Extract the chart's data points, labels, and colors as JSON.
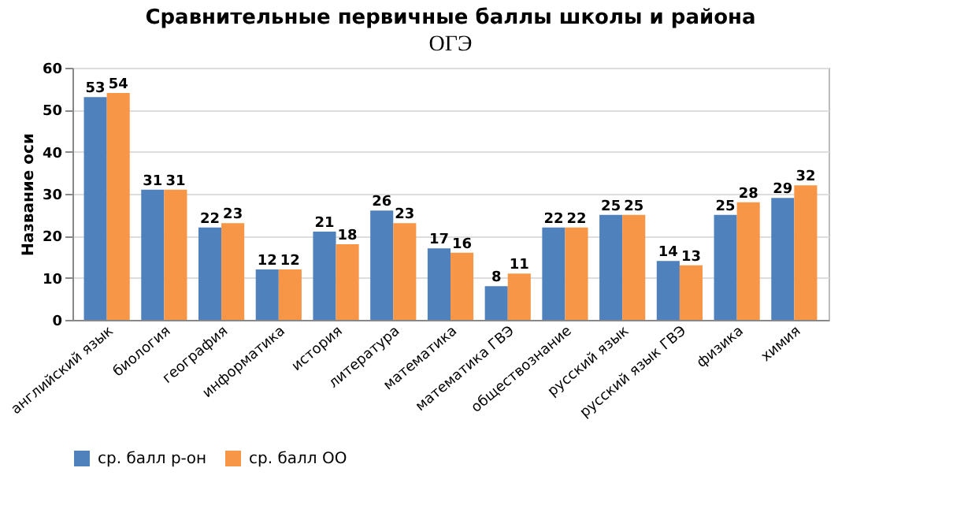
{
  "chart_data": {
    "type": "bar",
    "title": "Сравнительные первичные баллы школы и района",
    "subtitle": "ОГЭ",
    "ylabel": "Название оси",
    "categories": [
      "английский язык",
      "биология",
      "география",
      "информатика",
      "история",
      "литература",
      "математика",
      "математика ГВЭ",
      "обществознание",
      "русский язык",
      "русский язык ГВЭ",
      "физика",
      "химия"
    ],
    "series": [
      {
        "name": "ср. балл р-он",
        "color": "#4f81bd",
        "values": [
          53,
          31,
          22,
          12,
          21,
          26,
          17,
          8,
          22,
          25,
          14,
          25,
          29
        ]
      },
      {
        "name": "ср. балл ОО",
        "color": "#f79646",
        "values": [
          54,
          31,
          23,
          12,
          18,
          23,
          16,
          11,
          22,
          25,
          13,
          28,
          32
        ]
      }
    ],
    "ylim": [
      0,
      60
    ],
    "yticks": [
      0,
      10,
      20,
      30,
      40,
      50,
      60
    ],
    "grid": "y",
    "data_labels": true,
    "legend": "bottom"
  }
}
